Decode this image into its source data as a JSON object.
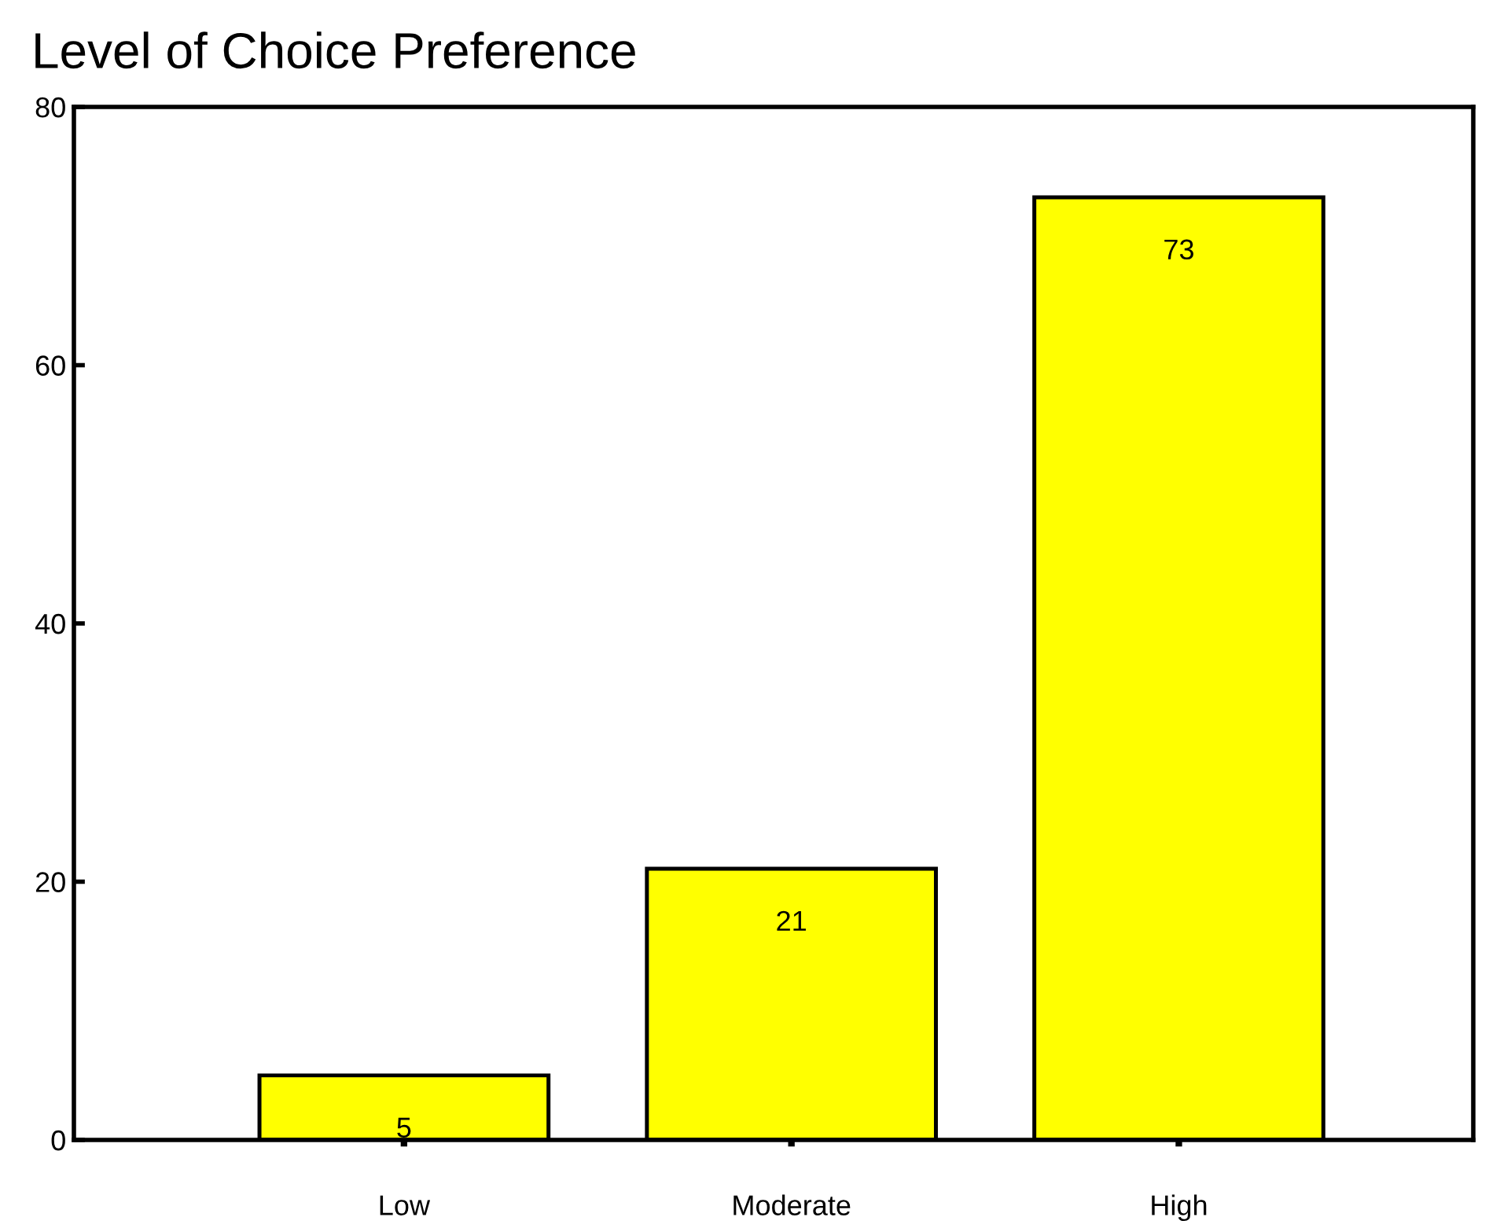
{
  "chart_data": {
    "type": "bar",
    "title": "Level of Choice Preference",
    "categories": [
      "Low",
      "Moderate",
      "High"
    ],
    "values": [
      5,
      21,
      73
    ],
    "color": "#ffff00",
    "ylim": [
      0,
      80
    ],
    "yticks": [
      0,
      20,
      40,
      60,
      80
    ],
    "data_labels": true,
    "grid": false,
    "legend": false
  }
}
